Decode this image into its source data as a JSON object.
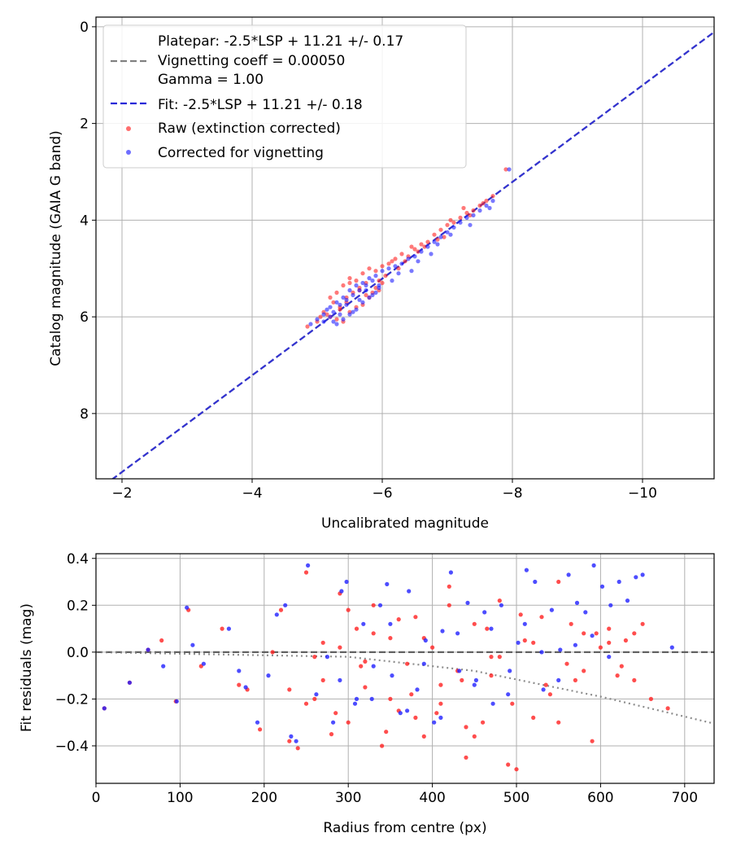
{
  "chart_data": [
    {
      "type": "scatter",
      "xlabel": "Uncalibrated magnitude",
      "ylabel": "Catalog magnitude (GAIA G band)",
      "xlim": [
        -1.6,
        -11.1
      ],
      "ylim": [
        9.35,
        -0.2
      ],
      "x_inverted": true,
      "y_inverted": true,
      "grid": true,
      "x_ticks": [
        -2,
        -4,
        -6,
        -8,
        -10
      ],
      "x_tick_labels": [
        "−2",
        "−4",
        "−6",
        "−8",
        "−10"
      ],
      "y_ticks": [
        0,
        2,
        4,
        6,
        8
      ],
      "y_tick_labels": [
        "0",
        "2",
        "4",
        "6",
        "8"
      ],
      "legend": {
        "placement": "upper-left",
        "entries": [
          {
            "label": "Platepar: -2.5*LSP + 11.21 +/- 0.17",
            "marker": "none"
          },
          {
            "label": "Vignetting coeff = 0.00050",
            "marker": "dashed-line",
            "color": "#808080"
          },
          {
            "label": "Gamma = 1.00",
            "marker": "none"
          },
          {
            "label": "Fit: -2.5*LSP + 11.21 +/- 0.18",
            "marker": "dashed-line",
            "color": "#2828d8"
          },
          {
            "label": "Raw (extinction corrected)",
            "marker": "dot",
            "color": "#ff2020"
          },
          {
            "label": "Corrected for vignetting",
            "marker": "dot",
            "color": "#2020ff"
          }
        ]
      },
      "lines": [
        {
          "name": "Platepar",
          "color": "#808080",
          "style": "dashed",
          "slope": 1.0,
          "intercept": 11.21
        },
        {
          "name": "Fit",
          "color": "#2828d8",
          "style": "dashed",
          "slope": 1.0,
          "intercept": 11.21
        }
      ],
      "series": [
        {
          "name": "Raw (extinction corrected)",
          "color": "#ff2020",
          "x": [
            -4.85,
            -5.0,
            -5.1,
            -5.2,
            -5.25,
            -5.3,
            -5.35,
            -5.4,
            -5.45,
            -5.5,
            -5.55,
            -5.6,
            -5.65,
            -5.7,
            -5.75,
            -5.8,
            -5.85,
            -5.9,
            -5.95,
            -6.0,
            -5.2,
            -5.3,
            -5.4,
            -5.5,
            -5.6,
            -5.7,
            -5.8,
            -5.9,
            -6.0,
            -6.1,
            -6.2,
            -6.3,
            -6.4,
            -6.5,
            -6.6,
            -6.7,
            -6.8,
            -6.9,
            -7.0,
            -7.1,
            -7.2,
            -7.3,
            -7.4,
            -7.5,
            -7.6,
            -7.7,
            -7.9,
            -5.15,
            -5.45,
            -5.75,
            -6.05,
            -6.35,
            -6.65,
            -6.95,
            -7.25,
            -7.55,
            -5.35,
            -5.65,
            -5.95,
            -6.25,
            -6.55,
            -6.85,
            -5.05,
            -5.5,
            -6.15,
            -6.45,
            -7.05,
            -7.35
          ],
          "y": [
            6.2,
            6.1,
            5.9,
            6.0,
            5.7,
            6.05,
            5.8,
            6.1,
            5.6,
            5.9,
            5.5,
            5.8,
            5.4,
            5.75,
            5.3,
            5.6,
            5.5,
            5.4,
            5.45,
            5.3,
            5.6,
            5.5,
            5.35,
            5.2,
            5.25,
            5.1,
            5.0,
            5.05,
            4.95,
            4.9,
            4.8,
            4.7,
            4.75,
            4.6,
            4.5,
            4.45,
            4.3,
            4.2,
            4.1,
            4.05,
            3.95,
            3.85,
            3.8,
            3.7,
            3.6,
            3.5,
            2.95,
            5.95,
            5.7,
            5.55,
            5.15,
            4.85,
            4.55,
            4.35,
            3.75,
            3.65,
            5.85,
            5.45,
            5.25,
            5.0,
            4.65,
            4.4,
            6.0,
            5.3,
            4.85,
            4.55,
            4.0,
            3.9
          ]
        },
        {
          "name": "Corrected for vignetting",
          "color": "#2020ff",
          "x": [
            -4.9,
            -5.0,
            -5.1,
            -5.15,
            -5.2,
            -5.25,
            -5.3,
            -5.35,
            -5.4,
            -5.45,
            -5.5,
            -5.55,
            -5.6,
            -5.65,
            -5.7,
            -5.75,
            -5.8,
            -5.85,
            -5.9,
            -5.95,
            -5.1,
            -5.2,
            -5.3,
            -5.4,
            -5.5,
            -5.6,
            -5.7,
            -5.8,
            -5.9,
            -6.0,
            -6.1,
            -6.2,
            -6.3,
            -6.4,
            -6.5,
            -6.6,
            -6.7,
            -6.8,
            -6.9,
            -7.0,
            -7.1,
            -7.2,
            -7.3,
            -7.4,
            -7.5,
            -7.6,
            -7.7,
            -7.95,
            -5.25,
            -5.55,
            -5.85,
            -6.15,
            -6.45,
            -6.75,
            -7.05,
            -7.35,
            -7.65,
            -5.35,
            -5.65,
            -5.95,
            -6.25,
            -6.55,
            -6.85,
            -5.45,
            -5.75
          ],
          "y": [
            6.15,
            6.05,
            6.1,
            5.85,
            6.0,
            5.9,
            6.15,
            5.75,
            6.05,
            5.65,
            5.95,
            5.55,
            5.85,
            5.45,
            5.7,
            5.35,
            5.6,
            5.25,
            5.5,
            5.4,
            5.95,
            5.8,
            5.7,
            5.6,
            5.45,
            5.35,
            5.3,
            5.2,
            5.15,
            5.05,
            5.0,
            4.95,
            4.9,
            4.8,
            4.75,
            4.65,
            4.55,
            4.45,
            4.35,
            4.25,
            4.15,
            4.05,
            3.95,
            3.9,
            3.8,
            3.7,
            3.6,
            2.95,
            6.1,
            5.9,
            5.55,
            5.25,
            5.05,
            4.7,
            4.3,
            4.1,
            3.75,
            5.95,
            5.65,
            5.35,
            5.1,
            4.85,
            4.5,
            5.75,
            5.45
          ]
        }
      ]
    },
    {
      "type": "scatter",
      "xlabel": "Radius from centre (px)",
      "ylabel": "Fit residuals (mag)",
      "xlim": [
        0,
        735
      ],
      "ylim": [
        -0.56,
        0.42
      ],
      "grid": true,
      "x_ticks": [
        0,
        100,
        200,
        300,
        400,
        500,
        600,
        700
      ],
      "x_tick_labels": [
        "0",
        "100",
        "200",
        "300",
        "400",
        "500",
        "600",
        "700"
      ],
      "y_ticks": [
        0.4,
        0.2,
        0.0,
        -0.2,
        -0.4
      ],
      "y_tick_labels": [
        "0.4",
        "0.2",
        "0.0",
        "−0.2",
        "−0.4"
      ],
      "lines": [
        {
          "name": "zero",
          "color": "#555555",
          "style": "dashed",
          "points": [
            [
              0,
              0
            ],
            [
              735,
              0
            ]
          ]
        },
        {
          "name": "vignetting trend",
          "color": "#808080",
          "style": "dotted",
          "points": [
            [
              0,
              0
            ],
            [
              300,
              -0.02
            ],
            [
              450,
              -0.08
            ],
            [
              600,
              -0.19
            ],
            [
              735,
              -0.305
            ]
          ]
        }
      ],
      "series": [
        {
          "name": "Raw (extinction corrected)",
          "color": "#ff2020",
          "x": [
            10,
            40,
            62,
            78,
            95,
            110,
            125,
            150,
            170,
            180,
            195,
            210,
            220,
            230,
            240,
            250,
            260,
            270,
            280,
            290,
            300,
            310,
            320,
            330,
            340,
            350,
            360,
            370,
            380,
            390,
            400,
            410,
            420,
            430,
            440,
            450,
            460,
            470,
            480,
            490,
            500,
            510,
            520,
            530,
            540,
            550,
            560,
            570,
            580,
            590,
            600,
            610,
            620,
            630,
            640,
            650,
            660,
            680,
            250,
            270,
            285,
            300,
            315,
            330,
            345,
            360,
            375,
            390,
            405,
            420,
            435,
            450,
            465,
            480,
            495,
            505,
            520,
            535,
            550,
            565,
            580,
            595,
            610,
            625,
            640,
            230,
            260,
            290,
            320,
            350,
            380,
            410,
            440,
            470
          ],
          "y": [
            -0.24,
            -0.13,
            0.01,
            0.05,
            -0.21,
            0.18,
            -0.06,
            0.1,
            -0.14,
            -0.16,
            -0.33,
            0.0,
            0.18,
            -0.38,
            -0.41,
            0.34,
            -0.2,
            -0.12,
            -0.35,
            0.25,
            -0.3,
            0.1,
            -0.15,
            0.2,
            -0.4,
            0.06,
            -0.25,
            -0.05,
            0.15,
            -0.36,
            0.02,
            -0.22,
            0.28,
            -0.08,
            -0.45,
            0.12,
            -0.3,
            -0.1,
            0.22,
            -0.48,
            -0.5,
            0.05,
            -0.28,
            0.15,
            -0.18,
            0.3,
            -0.05,
            -0.12,
            0.08,
            -0.38,
            0.02,
            0.1,
            -0.1,
            0.05,
            0.08,
            0.12,
            -0.2,
            -0.24,
            -0.22,
            0.04,
            -0.26,
            0.18,
            -0.06,
            0.08,
            -0.34,
            0.14,
            -0.18,
            0.06,
            -0.26,
            0.2,
            -0.12,
            -0.36,
            0.1,
            -0.02,
            -0.22,
            0.16,
            0.04,
            -0.14,
            -0.3,
            0.12,
            -0.08,
            0.08,
            0.04,
            -0.06,
            -0.12,
            -0.16,
            -0.02,
            0.02,
            -0.04,
            -0.2,
            -0.28,
            -0.14,
            -0.32,
            -0.02
          ]
        },
        {
          "name": "Corrected for vignetting",
          "color": "#2020ff",
          "x": [
            10,
            40,
            62,
            80,
            96,
            108,
            115,
            128,
            158,
            170,
            178,
            192,
            205,
            215,
            225,
            232,
            238,
            252,
            262,
            275,
            282,
            292,
            298,
            308,
            318,
            328,
            338,
            346,
            352,
            362,
            372,
            382,
            392,
            402,
            412,
            422,
            432,
            442,
            452,
            462,
            472,
            482,
            492,
            502,
            512,
            522,
            532,
            542,
            552,
            562,
            572,
            582,
            592,
            602,
            612,
            622,
            632,
            642,
            650,
            685,
            290,
            310,
            330,
            350,
            370,
            390,
            410,
            430,
            450,
            470,
            490,
            510,
            530,
            550,
            570,
            590,
            610
          ],
          "y": [
            -0.24,
            -0.13,
            0.01,
            -0.06,
            -0.21,
            0.19,
            0.03,
            -0.05,
            0.1,
            -0.08,
            -0.15,
            -0.3,
            -0.1,
            0.16,
            0.2,
            -0.36,
            -0.38,
            0.37,
            -0.18,
            -0.02,
            -0.3,
            0.26,
            0.3,
            -0.22,
            0.12,
            -0.2,
            0.2,
            0.29,
            -0.1,
            -0.26,
            0.26,
            -0.16,
            0.05,
            -0.3,
            0.09,
            0.34,
            -0.08,
            0.21,
            -0.12,
            0.17,
            -0.22,
            0.2,
            -0.08,
            0.04,
            0.35,
            0.3,
            -0.16,
            0.18,
            0.01,
            0.33,
            0.21,
            0.17,
            0.37,
            0.28,
            0.2,
            0.3,
            0.22,
            0.32,
            0.33,
            0.02,
            -0.12,
            -0.2,
            -0.06,
            0.12,
            -0.25,
            -0.05,
            -0.28,
            0.08,
            -0.14,
            0.1,
            -0.18,
            0.12,
            0.0,
            -0.12,
            0.03,
            0.07,
            -0.02
          ]
        }
      ]
    }
  ]
}
